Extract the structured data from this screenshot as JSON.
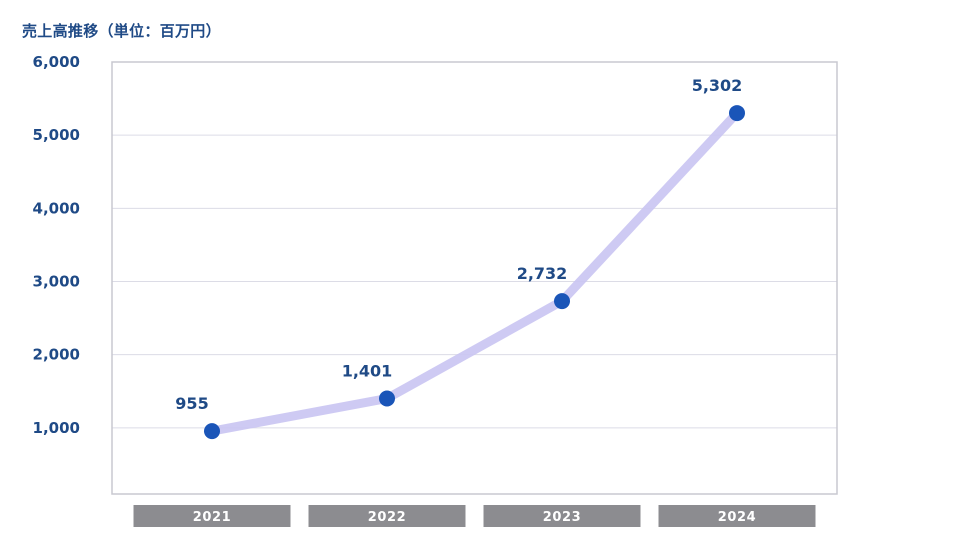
{
  "chart_data": {
    "type": "line",
    "title": "売上高推移（単位：百万円）",
    "xlabel": "",
    "ylabel": "",
    "categories": [
      "2021",
      "2022",
      "2023",
      "2024"
    ],
    "series": [
      {
        "values": [
          955,
          1401,
          2732,
          5302
        ]
      }
    ],
    "data_labels": [
      "955",
      "1,401",
      "2,732",
      "5,302"
    ],
    "y_ticks": [
      1000,
      2000,
      3000,
      4000,
      5000,
      6000
    ],
    "y_tick_labels": [
      "1,000",
      "2,000",
      "3,000",
      "4,000",
      "5,000",
      "6,000"
    ],
    "ylim": [
      0,
      6000
    ],
    "grid": true,
    "legend": "none",
    "colors": {
      "title": "#1f4a86",
      "axis_text": "#1f4a86",
      "marker": "#1a55b8",
      "line": "#c9c4f2",
      "grid": "#dcdce6",
      "frame": "#c8c8d0",
      "category_box": "#8c8c90"
    }
  }
}
